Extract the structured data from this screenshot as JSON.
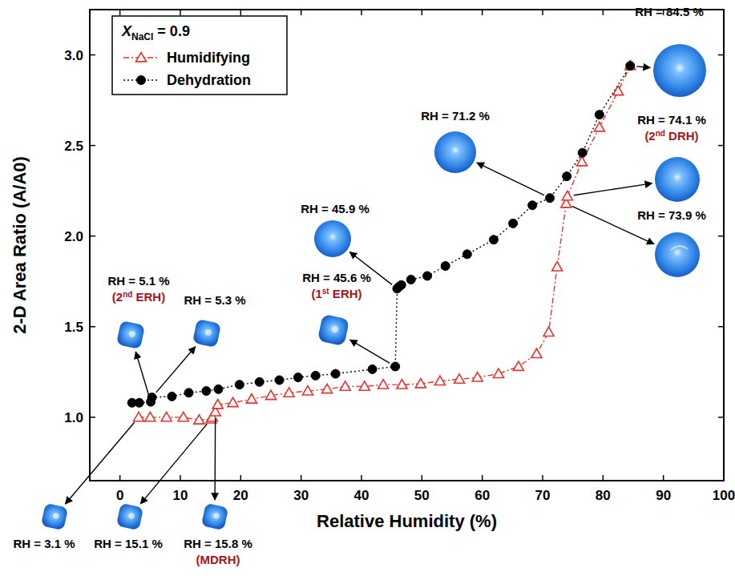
{
  "chart_data": {
    "type": "scatter",
    "x_label": "Relative Humidity (%)",
    "y_label": "2-D Area Ratio (A/A0)",
    "legend_title": {
      "variable": "X",
      "subscript": "NaCl",
      "text": " = 0.9"
    },
    "legend": "upper left",
    "grid": false,
    "xlim": [
      -5,
      100
    ],
    "ylim": [
      0.65,
      3.25
    ],
    "xticks": [
      0,
      10,
      20,
      30,
      40,
      50,
      60,
      70,
      80,
      90,
      100
    ],
    "yticks": [
      {
        "value": 1,
        "label": "1.0"
      },
      {
        "value": 1.5,
        "label": "1.5"
      },
      {
        "value": 2,
        "label": "2.0"
      },
      {
        "value": 2.5,
        "label": "2.5"
      },
      {
        "value": 3,
        "label": "3.0"
      }
    ],
    "series": [
      {
        "name": "Humidifying",
        "color": "#e8322b",
        "marker": "triangle",
        "line_style": "dashdot",
        "x": [
          3.1,
          5.0,
          7.7,
          10.5,
          13.1,
          15.1,
          15.3,
          15.8,
          16.2,
          18.7,
          21.8,
          25.0,
          28.0,
          31.1,
          34.3,
          37.3,
          40.5,
          43.6,
          46.7,
          49.8,
          53.0,
          56.2,
          59.2,
          62.7,
          66.0,
          69.0,
          71.0,
          72.4,
          73.9,
          74.1,
          76.5,
          79.4,
          82.5,
          84.5
        ],
        "values": [
          1.0,
          1.0,
          1.0,
          1.0,
          0.985,
          0.99,
          1.0,
          1.03,
          1.07,
          1.08,
          1.1,
          1.12,
          1.135,
          1.145,
          1.155,
          1.17,
          1.17,
          1.18,
          1.18,
          1.185,
          1.2,
          1.21,
          1.22,
          1.24,
          1.28,
          1.35,
          1.47,
          1.83,
          2.18,
          2.22,
          2.41,
          2.6,
          2.8,
          2.94
        ]
      },
      {
        "name": "Dehydration",
        "color": "#000000",
        "marker": "circle",
        "line_style": "dotted",
        "x": [
          84.5,
          79.4,
          76.6,
          74.0,
          71.2,
          68.3,
          65.1,
          61.9,
          57.5,
          53.9,
          50.9,
          48.2,
          46.6,
          46.2,
          45.9,
          45.6,
          41.8,
          35.7,
          32.4,
          29.5,
          26.4,
          23.1,
          19.8,
          16.3,
          14.3,
          11.4,
          8.6,
          5.3,
          5.1,
          3.2,
          2.0
        ],
        "values": [
          2.94,
          2.67,
          2.46,
          2.33,
          2.21,
          2.17,
          2.07,
          1.98,
          1.9,
          1.835,
          1.78,
          1.76,
          1.73,
          1.72,
          1.71,
          1.28,
          1.265,
          1.24,
          1.23,
          1.22,
          1.205,
          1.195,
          1.18,
          1.155,
          1.145,
          1.135,
          1.115,
          1.11,
          1.085,
          1.08,
          1.08
        ]
      }
    ],
    "annotations": [
      {
        "label": "RH = 84.5 %",
        "x": 84.5,
        "y": 2.94
      },
      {
        "label": "RH = 71.2 %",
        "x": 71.2,
        "y": 2.21
      },
      {
        "label": "RH = 74.1 %",
        "sublabel": "(2nd DRH)",
        "x": 74.1,
        "y": 2.22
      },
      {
        "label": "RH = 73.9 %",
        "x": 73.9,
        "y": 2.18
      },
      {
        "label": "RH = 45.9 %",
        "x": 45.9,
        "y": 1.71
      },
      {
        "label": "RH = 45.6 %",
        "sublabel": "(1st ERH)",
        "x": 45.6,
        "y": 1.28
      },
      {
        "label": "RH = 5.1 %",
        "sublabel": "(2nd ERH)",
        "x": 5.1,
        "y": 1.085
      },
      {
        "label": "RH = 5.3 %",
        "x": 5.3,
        "y": 1.11
      },
      {
        "label": "RH = 3.1 %",
        "x": 3.1,
        "y": 1.0
      },
      {
        "label": "RH = 15.1 %",
        "x": 15.1,
        "y": 0.99
      },
      {
        "label": "RH = 15.8 %",
        "sublabel": "(MDRH)",
        "x": 15.8,
        "y": 1.03
      }
    ]
  }
}
